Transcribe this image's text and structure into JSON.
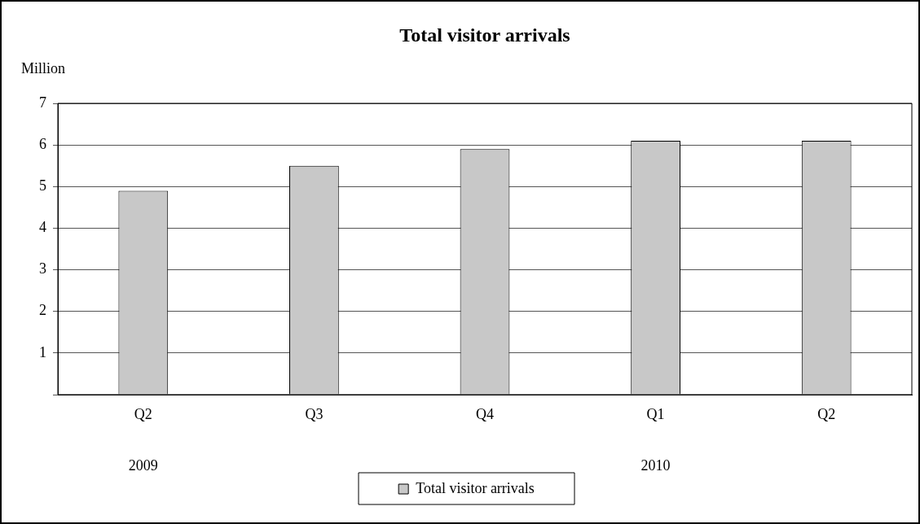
{
  "chart_data": {
    "type": "bar",
    "title": "Total visitor arrivals",
    "ylabel": "Million",
    "categories": [
      "Q2",
      "Q3",
      "Q4",
      "Q1",
      "Q2"
    ],
    "series": [
      {
        "name": "Total visitor arrivals",
        "color": "#c8c8c8",
        "values": [
          4.9,
          5.5,
          5.9,
          6.1,
          6.1
        ]
      }
    ],
    "ylim": [
      0,
      7
    ],
    "yticks": [
      {
        "value": 0,
        "label": null
      },
      1,
      2,
      3,
      4,
      5,
      6,
      7
    ],
    "grid": "y",
    "legend": "bottom",
    "annotations": [
      "2009",
      "2010"
    ]
  }
}
